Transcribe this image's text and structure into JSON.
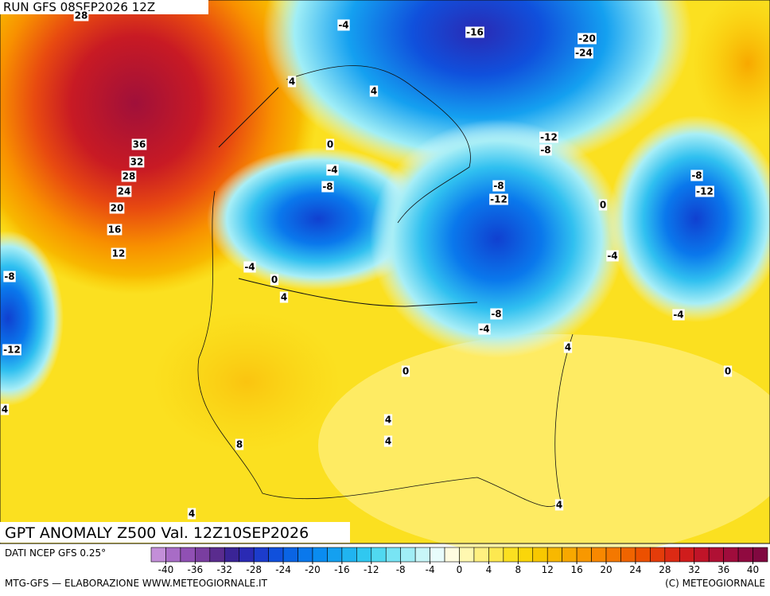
{
  "header": {
    "run": "RUN GFS 08SEP2026 12Z"
  },
  "map_labels": [
    28,
    36,
    32,
    28,
    24,
    20,
    16,
    12,
    4,
    4,
    0,
    -4,
    -8,
    -4,
    -16,
    -20,
    -24,
    -12,
    -8,
    -8,
    -12,
    0,
    -8,
    -12,
    -4,
    -4,
    0,
    4,
    -8,
    -4,
    -4,
    4,
    0,
    0,
    -8,
    -12,
    4,
    4,
    4,
    8,
    4,
    4
  ],
  "footer": {
    "title": "GPT ANOMALY Z500 Val. 12Z10SEP2026",
    "source": "DATI NCEP GFS 0.25°",
    "credit": "MTG-GFS — ELABORAZIONE WWW.METEOGIORNALE.IT",
    "copyright": "(C) METEOGIORNALE"
  },
  "colorbar": {
    "range": [
      -42,
      42
    ],
    "ticks": [
      -40,
      -36,
      -32,
      -28,
      -24,
      -20,
      -16,
      -12,
      -8,
      -4,
      0,
      4,
      8,
      12,
      16,
      20,
      24,
      28,
      32,
      36,
      40
    ],
    "colors": [
      "#c38fd8",
      "#a86cc6",
      "#9050b4",
      "#7a3ea0",
      "#5a2c8e",
      "#3a2496",
      "#2a2ab4",
      "#1c3ccc",
      "#1050dc",
      "#0a64e4",
      "#0a78ec",
      "#0a8cf0",
      "#14a0f0",
      "#20b4f0",
      "#30c8f0",
      "#50d8f0",
      "#78e4f4",
      "#a0eef6",
      "#c8f6f8",
      "#e8fcfc",
      "#fffce0",
      "#fff8b0",
      "#fff080",
      "#fde850",
      "#fbe020",
      "#fad60a",
      "#f8c800",
      "#f8b800",
      "#f8a800",
      "#f89800",
      "#f88800",
      "#f47800",
      "#f06400",
      "#ec5000",
      "#e43c0a",
      "#dc2a14",
      "#d01c1c",
      "#c01428",
      "#b01034",
      "#a00c3c",
      "#900a40",
      "#800840"
    ]
  }
}
